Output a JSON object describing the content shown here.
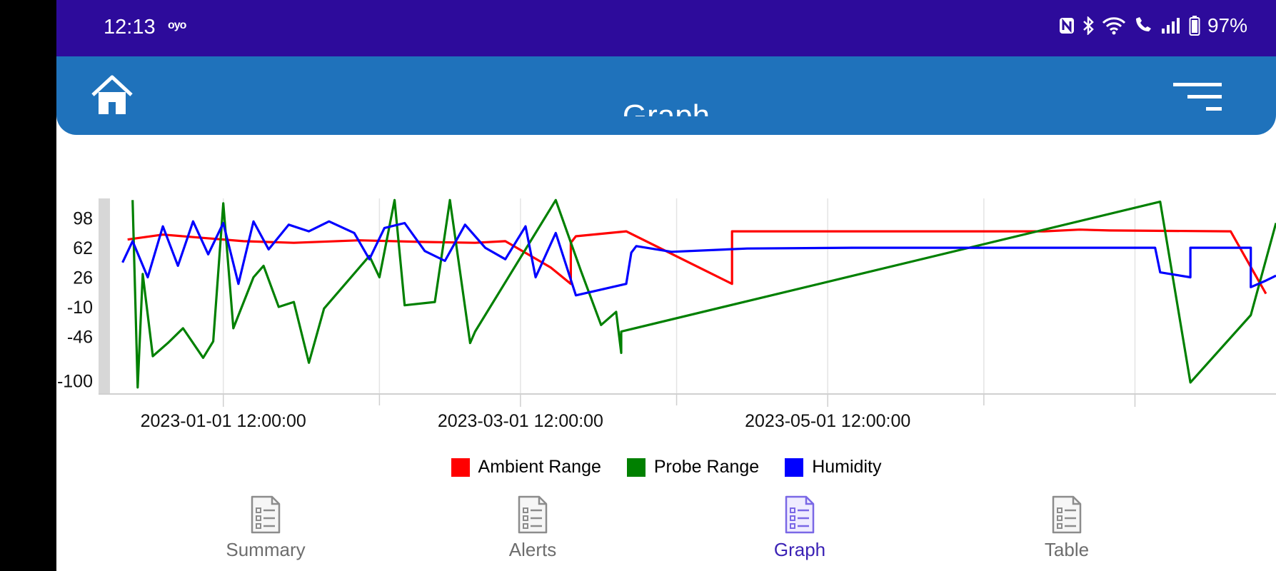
{
  "status_bar": {
    "time": "12:13",
    "carrier": "oyo",
    "battery": "97%"
  },
  "header": {
    "title": "Graph"
  },
  "chart_data": {
    "type": "line",
    "x_tick_labels": [
      "2023-01-01 12:00:00",
      "2023-03-01 12:00:00",
      "2023-05-01 12:00:00"
    ],
    "y_ticks": [
      98,
      62,
      26,
      -10,
      -46,
      -100
    ],
    "ylim": [
      -116,
      122
    ],
    "grid": true,
    "legend_position": "bottom-center",
    "series": [
      {
        "name": "Ambient Range",
        "color": "#ff0000",
        "points": [
          [
            "2022-12-13",
            72
          ],
          [
            "2022-12-20",
            78
          ],
          [
            "2022-12-28",
            74
          ],
          [
            "2023-01-05",
            70
          ],
          [
            "2023-01-15",
            68
          ],
          [
            "2023-01-28",
            71
          ],
          [
            "2023-02-10",
            69
          ],
          [
            "2023-02-20",
            68
          ],
          [
            "2023-02-26",
            70
          ],
          [
            "2023-03-07",
            38
          ],
          [
            "2023-03-11",
            18
          ],
          [
            "2023-03-11",
            68
          ],
          [
            "2023-03-12",
            76
          ],
          [
            "2023-03-22",
            82
          ],
          [
            "2023-04-12",
            18
          ],
          [
            "2023-04-12",
            82
          ],
          [
            "2023-06-13",
            82
          ],
          [
            "2023-06-20",
            84
          ],
          [
            "2023-06-26",
            83
          ],
          [
            "2023-07-20",
            82
          ],
          [
            "2023-07-27",
            6
          ]
        ]
      },
      {
        "name": "Probe Range",
        "color": "#008000",
        "points": [
          [
            "2022-12-14",
            120
          ],
          [
            "2022-12-15",
            -108
          ],
          [
            "2022-12-16",
            30
          ],
          [
            "2022-12-18",
            -70
          ],
          [
            "2022-12-21",
            -54
          ],
          [
            "2022-12-24",
            -36
          ],
          [
            "2022-12-28",
            -72
          ],
          [
            "2022-12-30",
            -52
          ],
          [
            "2023-01-01",
            116
          ],
          [
            "2023-01-03",
            -36
          ],
          [
            "2023-01-07",
            26
          ],
          [
            "2023-01-09",
            40
          ],
          [
            "2023-01-12",
            -10
          ],
          [
            "2023-01-15",
            -4
          ],
          [
            "2023-01-18",
            -78
          ],
          [
            "2023-01-21",
            -12
          ],
          [
            "2023-01-30",
            52
          ],
          [
            "2023-02-01",
            26
          ],
          [
            "2023-02-04",
            120
          ],
          [
            "2023-02-06",
            -8
          ],
          [
            "2023-02-12",
            -4
          ],
          [
            "2023-02-15",
            120
          ],
          [
            "2023-02-19",
            -54
          ],
          [
            "2023-02-20",
            -40
          ],
          [
            "2023-03-08",
            120
          ],
          [
            "2023-03-13",
            34
          ],
          [
            "2023-03-17",
            -32
          ],
          [
            "2023-03-20",
            -16
          ],
          [
            "2023-03-21",
            -66
          ],
          [
            "2023-03-21",
            -40
          ],
          [
            "2023-07-06",
            118
          ],
          [
            "2023-07-12",
            -102
          ],
          [
            "2023-07-24",
            -20
          ],
          [
            "2023-07-29",
            92
          ]
        ]
      },
      {
        "name": "Humidity",
        "color": "#0000ff",
        "points": [
          [
            "2022-12-12",
            44
          ],
          [
            "2022-12-14",
            70
          ],
          [
            "2022-12-17",
            26
          ],
          [
            "2022-12-20",
            88
          ],
          [
            "2022-12-23",
            40
          ],
          [
            "2022-12-26",
            94
          ],
          [
            "2022-12-29",
            54
          ],
          [
            "2023-01-01",
            92
          ],
          [
            "2023-01-04",
            18
          ],
          [
            "2023-01-07",
            94
          ],
          [
            "2023-01-10",
            60
          ],
          [
            "2023-01-14",
            90
          ],
          [
            "2023-01-18",
            82
          ],
          [
            "2023-01-22",
            94
          ],
          [
            "2023-01-27",
            80
          ],
          [
            "2023-01-30",
            48
          ],
          [
            "2023-02-02",
            86
          ],
          [
            "2023-02-06",
            92
          ],
          [
            "2023-02-10",
            58
          ],
          [
            "2023-02-14",
            46
          ],
          [
            "2023-02-18",
            90
          ],
          [
            "2023-02-22",
            62
          ],
          [
            "2023-02-26",
            48
          ],
          [
            "2023-03-02",
            88
          ],
          [
            "2023-03-04",
            26
          ],
          [
            "2023-03-08",
            80
          ],
          [
            "2023-03-12",
            4
          ],
          [
            "2023-03-22",
            18
          ],
          [
            "2023-03-23",
            56
          ],
          [
            "2023-03-24",
            64
          ],
          [
            "2023-03-31",
            57
          ],
          [
            "2023-04-15",
            61
          ],
          [
            "2023-05-06",
            62
          ],
          [
            "2023-05-28",
            62
          ],
          [
            "2023-07-05",
            62
          ],
          [
            "2023-07-06",
            32
          ],
          [
            "2023-07-12",
            26
          ],
          [
            "2023-07-12",
            62
          ],
          [
            "2023-07-24",
            62
          ],
          [
            "2023-07-24",
            14
          ],
          [
            "2023-07-27",
            22
          ],
          [
            "2023-07-29",
            28
          ]
        ]
      }
    ]
  },
  "legend": {
    "items": [
      "Ambient Range",
      "Probe Range",
      "Humidity"
    ]
  },
  "tabs": [
    {
      "label": "Summary",
      "active": false
    },
    {
      "label": "Alerts",
      "active": false
    },
    {
      "label": "Graph",
      "active": true
    },
    {
      "label": "Table",
      "active": false
    }
  ]
}
